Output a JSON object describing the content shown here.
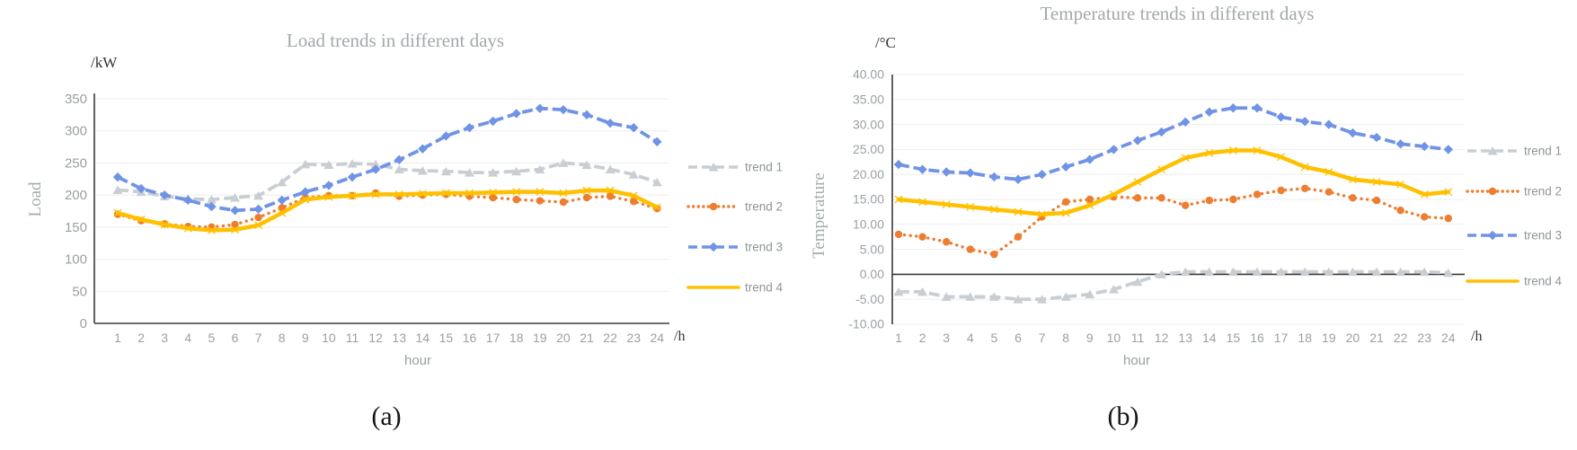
{
  "colors": {
    "axis": "#3b3b3b",
    "grid": "#ededee",
    "title": "#a3a9ab",
    "tick": "#9aa0a4",
    "legend_text": "#8f9598",
    "unit_text": "#343434",
    "caption": "#161616"
  },
  "chart_data": [
    {
      "type": "line",
      "panel": "a",
      "caption": "(a)",
      "title": "Load trends in different days",
      "ylabel": "Load",
      "y_axis_unit": "/kW",
      "xlabel": "hour",
      "x_axis_unit": "/h",
      "x": [
        1,
        2,
        3,
        4,
        5,
        6,
        7,
        8,
        9,
        10,
        11,
        12,
        13,
        14,
        15,
        16,
        17,
        18,
        19,
        20,
        21,
        22,
        23,
        24
      ],
      "ylim": [
        0,
        350
      ],
      "ytick_step": 50,
      "ytick_decimals": 0,
      "grid": true,
      "legend_position": "right",
      "series": [
        {
          "name": "trend 1",
          "color": "#c9ced3",
          "line": "dashed",
          "marker": "triangle",
          "values": [
            208,
            205,
            198,
            194,
            193,
            196,
            199,
            220,
            248,
            247,
            249,
            248,
            240,
            238,
            237,
            235,
            235,
            237,
            240,
            250,
            247,
            240,
            232,
            220
          ]
        },
        {
          "name": "trend 2",
          "color": "#ed7d31",
          "line": "dotted",
          "marker": "circle",
          "values": [
            170,
            160,
            155,
            151,
            150,
            154,
            165,
            180,
            196,
            199,
            199,
            203,
            198,
            200,
            201,
            198,
            196,
            193,
            191,
            189,
            196,
            198,
            190,
            179
          ]
        },
        {
          "name": "trend 3",
          "color": "#7193e6",
          "line": "dashed",
          "marker": "diamond",
          "values": [
            228,
            210,
            200,
            192,
            182,
            176,
            178,
            192,
            205,
            215,
            228,
            240,
            255,
            272,
            292,
            305,
            315,
            327,
            335,
            333,
            325,
            312,
            305,
            283
          ]
        },
        {
          "name": "trend 4",
          "color": "#ffc000",
          "line": "solid",
          "marker": "x",
          "values": [
            172,
            162,
            154,
            148,
            145,
            146,
            153,
            172,
            193,
            197,
            199,
            201,
            201,
            202,
            203,
            203,
            204,
            205,
            205,
            203,
            207,
            207,
            199,
            181
          ]
        }
      ]
    },
    {
      "type": "line",
      "panel": "b",
      "caption": "(b)",
      "title": "Temperature trends in different days",
      "ylabel": "Temperature",
      "y_axis_unit": "/°C",
      "xlabel": "hour",
      "x_axis_unit": "/h",
      "x": [
        1,
        2,
        3,
        4,
        5,
        6,
        7,
        8,
        9,
        10,
        11,
        12,
        13,
        14,
        15,
        16,
        17,
        18,
        19,
        20,
        21,
        22,
        23,
        24
      ],
      "ylim": [
        -10,
        40
      ],
      "ytick_step": 5,
      "ytick_decimals": 2,
      "zero_axis": true,
      "grid": true,
      "legend_position": "right",
      "series": [
        {
          "name": "trend 1",
          "color": "#c9ced3",
          "line": "dashed",
          "marker": "triangle",
          "values": [
            -3.5,
            -3.5,
            -4.5,
            -4.5,
            -4.5,
            -5,
            -5,
            -4.5,
            -4,
            -3,
            -1.5,
            0,
            0.5,
            0.5,
            0.5,
            0.5,
            0.5,
            0.5,
            0.5,
            0.5,
            0.5,
            0.5,
            0.5,
            0.3
          ]
        },
        {
          "name": "trend 2",
          "color": "#ed7d31",
          "line": "dotted",
          "marker": "circle",
          "values": [
            8,
            7.5,
            6.5,
            5,
            4,
            7.5,
            11.5,
            14.5,
            15,
            15.5,
            15.3,
            15.3,
            13.8,
            14.8,
            15,
            16,
            16.8,
            17.2,
            16.5,
            15.3,
            14.8,
            12.8,
            11.5,
            11.2
          ]
        },
        {
          "name": "trend 3",
          "color": "#7193e6",
          "line": "dashed",
          "marker": "diamond",
          "values": [
            22,
            21,
            20.5,
            20.3,
            19.5,
            19,
            20,
            21.5,
            23,
            25,
            26.8,
            28.5,
            30.5,
            32.5,
            33.3,
            33.3,
            31.5,
            30.6,
            30,
            28.3,
            27.4,
            26.1,
            25.6,
            25
          ]
        },
        {
          "name": "trend 4",
          "color": "#ffc000",
          "line": "solid",
          "marker": "x",
          "values": [
            15,
            14.5,
            14,
            13.5,
            13,
            12.5,
            12,
            12.3,
            13.8,
            16,
            18.5,
            21,
            23.3,
            24.3,
            24.8,
            24.8,
            23.5,
            21.5,
            20.5,
            19,
            18.5,
            18,
            16,
            16.5
          ]
        }
      ]
    }
  ]
}
